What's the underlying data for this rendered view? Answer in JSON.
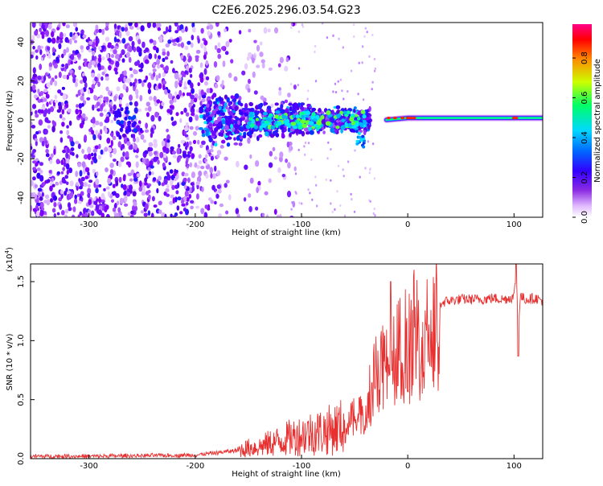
{
  "chart_data": [
    {
      "type": "heatmap",
      "title": "C2E6.2025.296.03.54.G23",
      "xlabel": "Height of straight line (km)",
      "ylabel": "Frequency (Hz)",
      "xlim": [
        -355,
        127
      ],
      "ylim": [
        -50,
        50
      ],
      "xticks": [
        -300,
        -200,
        -100,
        0,
        100
      ],
      "yticks": [
        -40,
        -20,
        0,
        20,
        40
      ],
      "colorbar": {
        "label": "Normalized spectral amplitude",
        "range": [
          0.0,
          0.97
        ],
        "ticks": [
          "0.0",
          "0.2",
          "0.4",
          "0.6",
          "0.8"
        ],
        "colors": [
          "#ffffff",
          "#e0b8ff",
          "#8a2be2",
          "#3300ff",
          "#0066ff",
          "#00d8ff",
          "#00ff66",
          "#ccff00",
          "#ff8800",
          "#ff0000",
          "#ff0088"
        ]
      },
      "signal_track": [
        {
          "x": -190,
          "f": 0
        },
        {
          "x": -150,
          "f": 2
        },
        {
          "x": -120,
          "f": 1
        },
        {
          "x": -90,
          "f": 2
        },
        {
          "x": -70,
          "f": 0
        },
        {
          "x": -50,
          "f": -1
        },
        {
          "x": -40,
          "f": -2
        },
        {
          "x": -20,
          "f": 0
        },
        {
          "x": 0,
          "f": 1
        },
        {
          "x": 20,
          "f": 1
        },
        {
          "x": 60,
          "f": 1
        },
        {
          "x": 100,
          "f": 1
        },
        {
          "x": 127,
          "f": 1
        }
      ]
    },
    {
      "type": "line",
      "title": "",
      "xlabel": "Height of straight line (km)",
      "ylabel": "SNR (10 * v/v)",
      "scale_label": "(x10",
      "scale_exp": "4",
      "scale_close": ")",
      "xlim": [
        -355,
        127
      ],
      "ylim": [
        0,
        16500
      ],
      "xticks": [
        -300,
        -200,
        -100,
        0,
        100
      ],
      "yticks": [
        0,
        5000,
        10000,
        15000
      ],
      "ytick_labels": [
        "0.0",
        "0.5",
        "1.0",
        "1.5"
      ],
      "series": [
        {
          "name": "SNR",
          "color": "#e83030",
          "x": [
            -355,
            -300,
            -250,
            -200,
            -180,
            -160,
            -150,
            -140,
            -130,
            -120,
            -110,
            -100,
            -90,
            -80,
            -70,
            -60,
            -50,
            -45,
            -40,
            -35,
            -30,
            -25,
            -20,
            -15,
            -10,
            -5,
            0,
            5,
            10,
            15,
            20,
            25,
            30,
            35,
            40,
            50,
            60,
            70,
            80,
            90,
            100,
            102,
            104,
            106,
            110,
            120,
            127
          ],
          "y": [
            200,
            200,
            250,
            300,
            500,
            700,
            900,
            1000,
            1300,
            1500,
            1800,
            2000,
            2200,
            2300,
            2500,
            2800,
            3600,
            4200,
            5200,
            6500,
            7500,
            8000,
            8800,
            9000,
            9500,
            10000,
            10400,
            11000,
            11500,
            12200,
            12500,
            12800,
            13100,
            13300,
            13400,
            13500,
            13500,
            13500,
            13600,
            13500,
            13700,
            16000,
            11000,
            13800,
            13500,
            13600,
            13400
          ]
        }
      ]
    }
  ]
}
